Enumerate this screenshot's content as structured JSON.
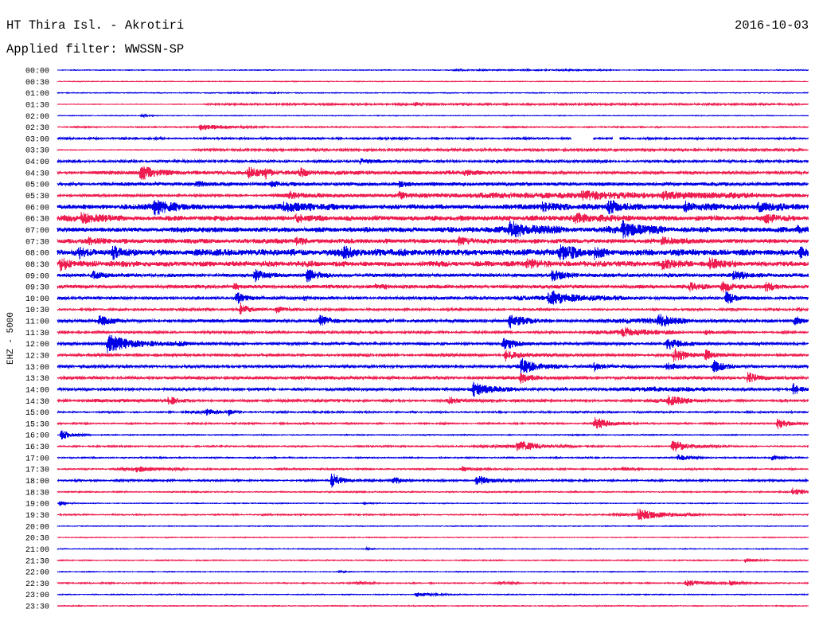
{
  "chart_data": {
    "type": "line",
    "title": "HT Thira Isl. - Akrotiri",
    "date": "2016-10-03",
    "subtitle": "Applied filter: WWSSN-SP",
    "ylabel": "EHZ - 5000",
    "x_range_minutes": [
      0,
      30
    ],
    "grid": false,
    "series": [
      {
        "name": "00:00",
        "color": "#0000e6",
        "noise": 0.03,
        "bands": [
          [
            15.5,
            22.5,
            0.03
          ]
        ],
        "events": []
      },
      {
        "name": "00:30",
        "color": "#ef1e50",
        "noise": 0.025,
        "bands": [],
        "events": []
      },
      {
        "name": "01:00",
        "color": "#0000e6",
        "noise": 0.03,
        "bands": [
          [
            6.5,
            9.0,
            0.02
          ]
        ],
        "events": []
      },
      {
        "name": "01:30",
        "color": "#ef1e50",
        "noise": 0.025,
        "bands": [
          [
            5.7,
            30,
            0.05
          ]
        ],
        "events": [
          [
            14.24,
            0.18,
            0.4
          ]
        ]
      },
      {
        "name": "02:00",
        "color": "#0000e6",
        "noise": 0.025,
        "bands": [],
        "events": [
          [
            3.3,
            0.1,
            0.8
          ]
        ]
      },
      {
        "name": "02:30",
        "color": "#ef1e50",
        "noise": 0.03,
        "bands": [
          [
            0,
            30,
            0.02
          ]
        ],
        "events": [
          [
            5.66,
            0.3,
            2.2
          ]
        ]
      },
      {
        "name": "03:00",
        "color": "#0000e6",
        "noise": 0.07,
        "bands": [],
        "events": [],
        "gaps": [
          [
            20.53,
            21.39
          ],
          [
            22.18,
            22.43
          ]
        ]
      },
      {
        "name": "03:30",
        "color": "#ef1e50",
        "noise": 0.03,
        "bands": [
          [
            5.3,
            30,
            0.06
          ]
        ],
        "events": []
      },
      {
        "name": "04:00",
        "color": "#0000e6",
        "noise": 0.07,
        "bands": [
          [
            0,
            30,
            0.02
          ]
        ],
        "events": [
          [
            12.0,
            0.22,
            1.8
          ]
        ]
      },
      {
        "name": "04:30",
        "color": "#ef1e50",
        "noise": 0.1,
        "bands": [
          [
            1.5,
            18,
            0.06
          ]
        ],
        "events": [
          [
            3.27,
            0.6,
            1.4
          ],
          [
            7.56,
            0.45,
            1.0
          ],
          [
            8.26,
            0.4,
            0.9
          ],
          [
            9.63,
            0.32,
            0.9
          ],
          [
            16.2,
            0.18,
            0.8
          ]
        ]
      },
      {
        "name": "05:00",
        "color": "#0000e6",
        "noise": 0.1,
        "bands": [
          [
            2.2,
            30,
            0.04
          ]
        ],
        "events": [
          [
            5.5,
            0.2,
            1.0
          ],
          [
            8.5,
            0.2,
            1.0
          ],
          [
            13.6,
            0.22,
            1.0
          ]
        ]
      },
      {
        "name": "05:30",
        "color": "#ef1e50",
        "noise": 0.09,
        "bands": [
          [
            8.5,
            30,
            0.08
          ],
          [
            16.5,
            28,
            0.08
          ]
        ],
        "events": [
          [
            9.22,
            0.38,
            0.8
          ],
          [
            13.6,
            0.25,
            0.8
          ],
          [
            20.9,
            0.3,
            2.0
          ],
          [
            24.1,
            0.25,
            1.8
          ]
        ]
      },
      {
        "name": "06:00",
        "color": "#0000e6",
        "noise": 0.18,
        "bands": [
          [
            2.5,
            5,
            0.1
          ],
          [
            8.5,
            11.5,
            0.12
          ],
          [
            18,
            30,
            0.06
          ]
        ],
        "events": [
          [
            3.81,
            0.65,
            1.2
          ],
          [
            9.0,
            0.35,
            1.5
          ],
          [
            19.3,
            0.35,
            1.0
          ],
          [
            21.96,
            0.55,
            1.0
          ],
          [
            25.0,
            0.35,
            1.2
          ],
          [
            27.9,
            0.35,
            1.5
          ]
        ]
      },
      {
        "name": "06:30",
        "color": "#ef1e50",
        "noise": 0.2,
        "bands": [
          [
            0,
            3,
            0.08
          ],
          [
            20,
            23,
            0.08
          ]
        ],
        "events": [
          [
            0.89,
            0.35,
            1.0
          ],
          [
            9.47,
            0.35,
            1.0
          ],
          [
            20.6,
            0.3,
            1.2
          ],
          [
            28.2,
            0.3,
            1.5
          ]
        ]
      },
      {
        "name": "07:00",
        "color": "#0000e6",
        "noise": 0.2,
        "bands": [
          [
            17.5,
            20.5,
            0.12
          ],
          [
            21.5,
            24.5,
            0.12
          ]
        ],
        "events": [
          [
            18.0,
            0.6,
            1.2
          ],
          [
            22.5,
            0.55,
            1.2
          ],
          [
            29.5,
            0.35,
            0.5
          ]
        ]
      },
      {
        "name": "07:30",
        "color": "#ef1e50",
        "noise": 0.18,
        "bands": [],
        "events": [
          [
            1.2,
            0.28,
            1.0
          ],
          [
            9.47,
            0.3,
            0.8
          ],
          [
            15.98,
            0.3,
            1.0
          ],
          [
            24.09,
            0.3,
            1.0
          ]
        ]
      },
      {
        "name": "08:00",
        "color": "#0000e6",
        "noise": 0.26,
        "bands": [],
        "events": [
          [
            0.8,
            0.45,
            0.8
          ],
          [
            2.16,
            0.45,
            0.8
          ],
          [
            11.38,
            0.35,
            1.0
          ],
          [
            19.96,
            0.55,
            1.5
          ],
          [
            21.39,
            0.35,
            0.8
          ],
          [
            29.6,
            0.45,
            0.4
          ]
        ]
      },
      {
        "name": "08:30",
        "color": "#ef1e50",
        "noise": 0.22,
        "bands": [],
        "events": [
          [
            0.05,
            0.6,
            0.6
          ],
          [
            18.68,
            0.35,
            1.2
          ],
          [
            24.09,
            0.35,
            1.2
          ],
          [
            25.99,
            0.5,
            1.0
          ]
        ]
      },
      {
        "name": "09:00",
        "color": "#0000e6",
        "noise": 0.14,
        "bands": [],
        "events": [
          [
            1.37,
            0.35,
            0.8
          ],
          [
            7.82,
            0.5,
            1.0
          ],
          [
            9.91,
            0.55,
            0.8
          ],
          [
            19.7,
            0.5,
            1.0
          ],
          [
            26.95,
            0.55,
            1.0
          ]
        ]
      },
      {
        "name": "09:30",
        "color": "#ef1e50",
        "noise": 0.14,
        "bands": [],
        "events": [
          [
            6.99,
            0.35,
            0.6
          ],
          [
            12.65,
            0.2,
            0.8
          ],
          [
            25.2,
            0.3,
            1.0
          ],
          [
            26.47,
            0.5,
            1.0
          ],
          [
            28.22,
            0.35,
            1.0
          ]
        ]
      },
      {
        "name": "10:00",
        "color": "#0000e6",
        "noise": 0.1,
        "bands": [
          [
            18.0,
            23.0,
            0.12
          ]
        ],
        "events": [
          [
            7.09,
            0.5,
            0.8
          ],
          [
            9.8,
            0.2,
            0.6
          ],
          [
            19.57,
            0.6,
            1.5
          ],
          [
            26.63,
            0.6,
            1.0
          ]
        ]
      },
      {
        "name": "10:30",
        "color": "#ef1e50",
        "noise": 0.08,
        "bands": [],
        "events": [
          [
            7.25,
            0.55,
            0.8
          ],
          [
            8.67,
            0.3,
            1.0
          ],
          [
            29.5,
            0.2,
            0.5
          ]
        ]
      },
      {
        "name": "11:00",
        "color": "#0000e6",
        "noise": 0.12,
        "bands": [
          [
            21.5,
            25.5,
            0.1
          ]
        ],
        "events": [
          [
            1.59,
            0.45,
            1.2
          ],
          [
            10.42,
            0.45,
            1.0
          ],
          [
            17.99,
            0.6,
            1.5
          ],
          [
            23.93,
            0.55,
            1.0
          ],
          [
            29.39,
            0.4,
            0.6
          ]
        ]
      },
      {
        "name": "11:30",
        "color": "#ef1e50",
        "noise": 0.08,
        "bands": [
          [
            21,
            25,
            0.1
          ]
        ],
        "events": [
          [
            22.5,
            0.35,
            1.5
          ],
          [
            25.8,
            0.2,
            0.8
          ]
        ]
      },
      {
        "name": "12:00",
        "color": "#0000e6",
        "noise": 0.09,
        "bands": [
          [
            4.4,
            5.4,
            0.08
          ]
        ],
        "events": [
          [
            1.94,
            0.75,
            2.6
          ],
          [
            17.73,
            0.6,
            1.2
          ],
          [
            24.28,
            0.55,
            1.5
          ]
        ]
      },
      {
        "name": "12:30",
        "color": "#ef1e50",
        "noise": 0.09,
        "bands": [
          [
            18,
            20,
            0.08
          ]
        ],
        "events": [
          [
            17.83,
            0.45,
            1.0
          ],
          [
            24.56,
            0.6,
            1.2
          ],
          [
            25.8,
            0.45,
            0.8
          ]
        ]
      },
      {
        "name": "13:00",
        "color": "#0000e6",
        "noise": 0.1,
        "bands": [
          [
            18,
            20.5,
            0.08
          ]
        ],
        "events": [
          [
            18.46,
            0.6,
            1.2
          ],
          [
            21.39,
            0.45,
            0.8
          ],
          [
            24.28,
            0.45,
            0.8
          ],
          [
            26.15,
            0.55,
            1.2
          ]
        ]
      },
      {
        "name": "13:30",
        "color": "#ef1e50",
        "noise": 0.1,
        "bands": [
          [
            9.2,
            11.2,
            0.05
          ]
        ],
        "events": [
          [
            18.43,
            0.5,
            1.0
          ],
          [
            27.49,
            0.5,
            1.2
          ]
        ]
      },
      {
        "name": "14:00",
        "color": "#0000e6",
        "noise": 0.1,
        "bands": [
          [
            15.98,
            18.5,
            0.08
          ],
          [
            22.2,
            26.2,
            0.1
          ]
        ],
        "events": [
          [
            16.56,
            0.55,
            1.2
          ],
          [
            29.33,
            0.55,
            0.6
          ]
        ]
      },
      {
        "name": "14:30",
        "color": "#ef1e50",
        "noise": 0.09,
        "bands": [
          [
            0.9,
            5.5,
            0.06
          ],
          [
            23.5,
            25.5,
            0.08
          ]
        ],
        "events": [
          [
            4.39,
            0.3,
            0.8
          ],
          [
            15.57,
            0.35,
            0.8
          ],
          [
            24.34,
            0.4,
            1.2
          ]
        ]
      },
      {
        "name": "15:00",
        "color": "#0000e6",
        "noise": 0.06,
        "bands": [
          [
            4.86,
            7.0,
            0.06
          ]
        ],
        "events": [
          [
            5.91,
            0.3,
            0.6
          ],
          [
            6.77,
            0.3,
            0.5
          ]
        ]
      },
      {
        "name": "15:30",
        "color": "#ef1e50",
        "noise": 0.06,
        "bands": [],
        "events": [
          [
            21.39,
            0.55,
            1.5
          ],
          [
            28.69,
            0.55,
            1.0
          ]
        ]
      },
      {
        "name": "16:00",
        "color": "#0000e6",
        "noise": 0.04,
        "bands": [],
        "events": [
          [
            0.1,
            0.5,
            0.8
          ]
        ]
      },
      {
        "name": "16:30",
        "color": "#ef1e50",
        "noise": 0.06,
        "bands": [
          [
            16.5,
            19.5,
            0.06
          ]
        ],
        "events": [
          [
            18.3,
            0.5,
            1.8
          ],
          [
            24.5,
            0.55,
            1.4
          ]
        ]
      },
      {
        "name": "17:00",
        "color": "#0000e6",
        "noise": 0.05,
        "bands": [],
        "events": [
          [
            24.72,
            0.25,
            1.2
          ],
          [
            28.47,
            0.25,
            0.8
          ]
        ]
      },
      {
        "name": "17:30",
        "color": "#ef1e50",
        "noise": 0.06,
        "bands": [
          [
            2.2,
            5.4,
            0.05
          ]
        ],
        "events": [
          [
            3.1,
            0.25,
            1.0
          ],
          [
            16.1,
            0.2,
            0.8
          ],
          [
            22.5,
            0.18,
            0.8
          ]
        ]
      },
      {
        "name": "18:00",
        "color": "#0000e6",
        "noise": 0.07,
        "bands": [],
        "events": [
          [
            10.9,
            0.7,
            0.8
          ],
          [
            13.35,
            0.4,
            0.7
          ],
          [
            16.68,
            0.45,
            1.4
          ]
        ]
      },
      {
        "name": "18:30",
        "color": "#ef1e50",
        "noise": 0.05,
        "bands": [],
        "events": [
          [
            29.3,
            0.35,
            1.2
          ]
        ]
      },
      {
        "name": "19:00",
        "color": "#0000e6",
        "noise": 0.03,
        "bands": [],
        "events": [
          [
            0.05,
            0.3,
            0.4
          ],
          [
            12.2,
            0.1,
            0.4
          ]
        ]
      },
      {
        "name": "19:30",
        "color": "#ef1e50",
        "noise": 0.05,
        "bands": [
          [
            22,
            26,
            0.05
          ]
        ],
        "events": [
          [
            23.13,
            0.5,
            1.8
          ]
        ]
      },
      {
        "name": "20:00",
        "color": "#0000e6",
        "noise": 0.03,
        "bands": [],
        "events": []
      },
      {
        "name": "20:30",
        "color": "#ef1e50",
        "noise": 0.03,
        "bands": [],
        "events": []
      },
      {
        "name": "21:00",
        "color": "#0000e6",
        "noise": 0.03,
        "bands": [],
        "events": [
          [
            12.3,
            0.08,
            0.5
          ]
        ]
      },
      {
        "name": "21:30",
        "color": "#ef1e50",
        "noise": 0.04,
        "bands": [],
        "events": [
          [
            27.42,
            0.2,
            1.0
          ]
        ]
      },
      {
        "name": "22:00",
        "color": "#0000e6",
        "noise": 0.03,
        "bands": [],
        "events": [
          [
            11.2,
            0.08,
            0.5
          ]
        ]
      },
      {
        "name": "22:30",
        "color": "#ef1e50",
        "noise": 0.05,
        "bands": [
          [
            11.5,
            13,
            0.05
          ],
          [
            17.4,
            18.6,
            0.05
          ]
        ],
        "events": [
          [
            25.04,
            0.3,
            1.8
          ],
          [
            26.8,
            0.2,
            0.8
          ]
        ]
      },
      {
        "name": "23:00",
        "color": "#0000e6",
        "noise": 0.035,
        "bands": [],
        "events": [
          [
            14.24,
            0.2,
            1.8
          ]
        ]
      },
      {
        "name": "23:30",
        "color": "#ef1e50",
        "noise": 0.035,
        "bands": [],
        "events": []
      }
    ]
  }
}
